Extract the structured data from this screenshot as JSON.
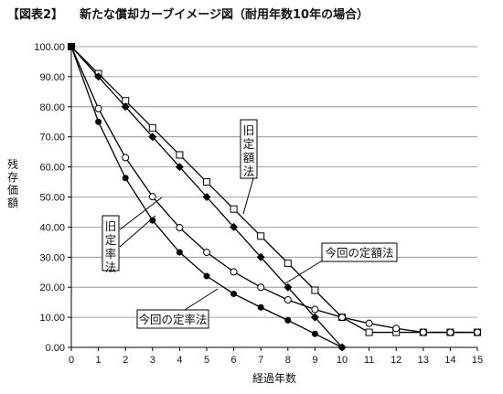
{
  "figure": {
    "label": "【図表2】",
    "title": "新たな償却カーブイメージ図（耐用年数10年の場合）"
  },
  "chart_data": {
    "type": "line",
    "xlabel": "経過年数",
    "ylabel": "残存価額",
    "xlim": [
      0,
      15
    ],
    "ylim": [
      0,
      100
    ],
    "x_ticks": [
      0,
      1,
      2,
      3,
      4,
      5,
      6,
      7,
      8,
      9,
      10,
      11,
      12,
      13,
      14,
      15
    ],
    "y_ticks": [
      0,
      10,
      20,
      30,
      40,
      50,
      60,
      70,
      80,
      90,
      100
    ],
    "y_tick_labels": [
      "0.00",
      "10.00",
      "20.00",
      "30.00",
      "40.00",
      "50.00",
      "60.00",
      "70.00",
      "80.00",
      "90.00",
      "100.00"
    ],
    "grid": "horizontal",
    "series": [
      {
        "name": "旧定額法",
        "marker": "open-square",
        "x": [
          0,
          1,
          2,
          3,
          4,
          5,
          6,
          7,
          8,
          9,
          10,
          11,
          12,
          13,
          14,
          15
        ],
        "values": [
          100,
          91,
          82,
          73,
          64,
          55,
          46,
          37,
          28,
          19,
          10,
          5,
          5,
          5,
          5,
          5
        ]
      },
      {
        "name": "今回の定額法",
        "marker": "filled-diamond",
        "x": [
          0,
          1,
          2,
          3,
          4,
          5,
          6,
          7,
          8,
          9,
          10
        ],
        "values": [
          100,
          90,
          80,
          70,
          60,
          50,
          40,
          30,
          20,
          10,
          0
        ]
      },
      {
        "name": "旧定率法",
        "marker": "open-circle",
        "x": [
          0,
          1,
          2,
          3,
          4,
          5,
          6,
          7,
          8,
          9,
          10,
          11,
          12,
          13,
          14,
          15
        ],
        "values": [
          100,
          79.4,
          63.1,
          50.1,
          39.8,
          31.6,
          25.1,
          20,
          15.8,
          12.6,
          10,
          8,
          6.3,
          5,
          5,
          5
        ]
      },
      {
        "name": "今回の定率法",
        "marker": "filled-circle",
        "x": [
          0,
          1,
          2,
          3,
          4,
          5,
          6,
          7,
          8,
          9,
          10
        ],
        "values": [
          100,
          75,
          56.3,
          42.2,
          31.6,
          23.7,
          17.8,
          13.3,
          9,
          4.5,
          0
        ]
      }
    ],
    "annotations": [
      {
        "text": "旧定額法",
        "series": "旧定額法"
      },
      {
        "text": "今回の定額法",
        "series": "今回の定額法"
      },
      {
        "text": "旧定率法",
        "series": "旧定率法"
      },
      {
        "text": "今回の定率法",
        "series": "今回の定率法"
      }
    ]
  }
}
